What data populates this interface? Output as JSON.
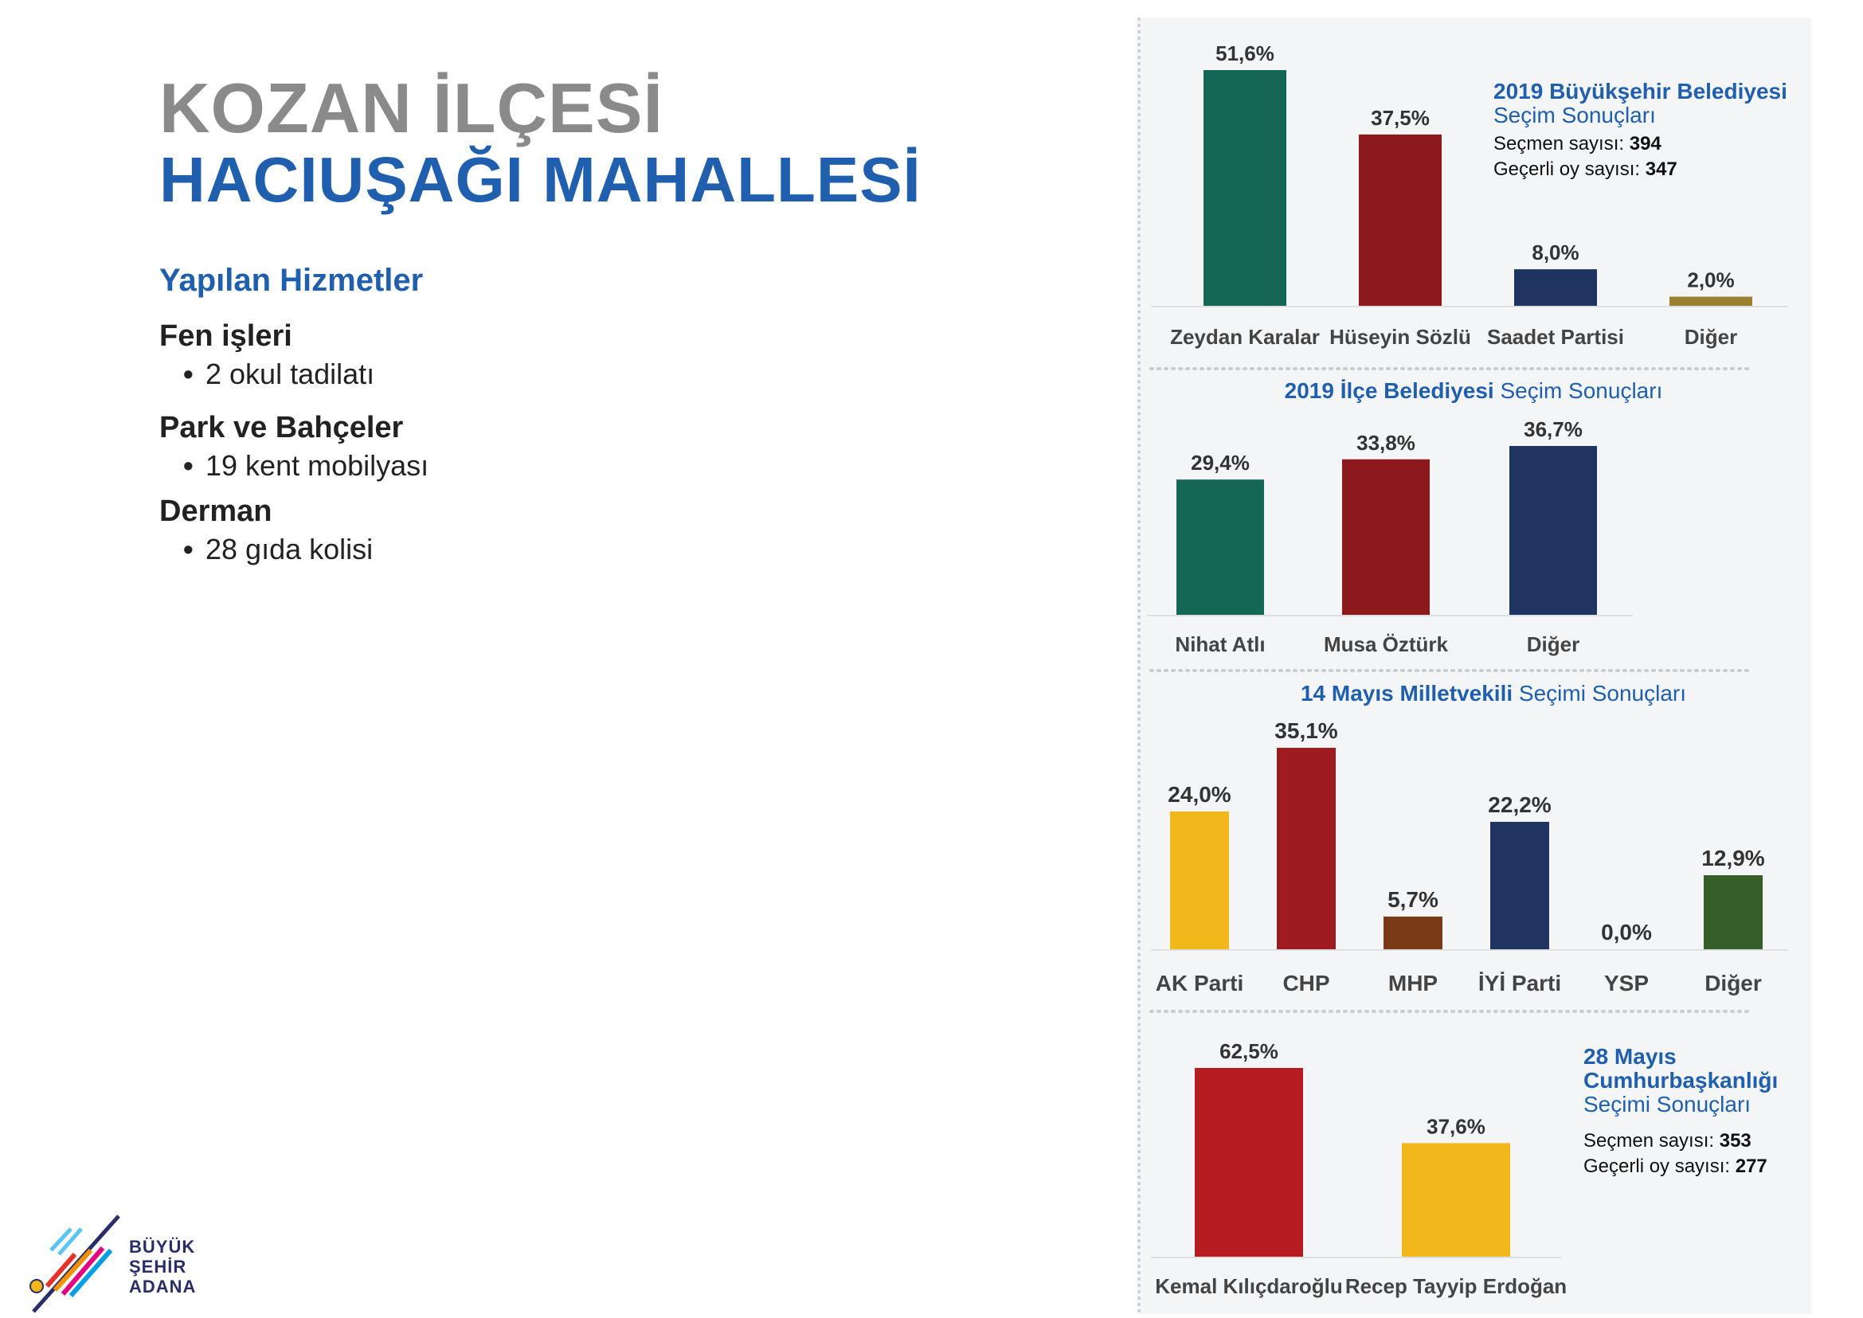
{
  "page": {
    "title_line1": "KOZAN İLÇESİ",
    "title_line2": "HACIUŞAĞI MAHALLESİ",
    "services_heading": "Yapılan Hizmetler",
    "services": [
      {
        "title": "Fen işleri",
        "items": [
          "2 okul tadilatı"
        ]
      },
      {
        "title": "Park ve Bahçeler",
        "items": [
          "19 kent mobilyası"
        ]
      },
      {
        "title": "Derman",
        "items": [
          "28 gıda kolisi"
        ]
      }
    ],
    "logo": {
      "line1": "BÜYÜK",
      "line2": "ŞEHİR",
      "line3": "ADANA"
    }
  },
  "chart_data": [
    {
      "type": "bar",
      "title_bold": "2019 Büyükşehir Belediyesi",
      "title_rest": "Seçim Sonuçları",
      "info": [
        {
          "label": "Seçmen sayısı:",
          "value": "394"
        },
        {
          "label": "Geçerli oy sayısı:",
          "value": "347"
        }
      ],
      "categories": [
        "Zeydan Karalar",
        "Hüseyin Sözlü",
        "Saadet Partisi",
        "Diğer"
      ],
      "values": [
        51.6,
        37.5,
        8.0,
        2.0
      ],
      "value_labels": [
        "51,6%",
        "37,5%",
        "8,0%",
        "2,0%"
      ],
      "colors": [
        "#146655",
        "#8c1a1c",
        "#1f3461",
        "#9a8030"
      ],
      "ylim": [
        0,
        51.6
      ]
    },
    {
      "type": "bar",
      "title_bold": "2019 İlçe Belediyesi",
      "title_rest": "Seçim Sonuçları",
      "categories": [
        "Nihat Atlı",
        "Musa Öztürk",
        "Diğer"
      ],
      "values": [
        29.4,
        33.8,
        36.7
      ],
      "value_labels": [
        "29,4%",
        "33,8%",
        "36,7%"
      ],
      "colors": [
        "#146655",
        "#8c1a1c",
        "#1f3461"
      ],
      "ylim": [
        0,
        36.7
      ]
    },
    {
      "type": "bar",
      "title_bold": "14 Mayıs Milletvekili",
      "title_rest": "Seçimi Sonuçları",
      "categories": [
        "AK Parti",
        "CHP",
        "MHP",
        "İYİ Parti",
        "YSP",
        "Diğer"
      ],
      "values": [
        24.0,
        35.1,
        5.7,
        22.2,
        0.0,
        12.9
      ],
      "value_labels": [
        "24,0%",
        "35,1%",
        "5,7%",
        "22,2%",
        "0,0%",
        "12,9%"
      ],
      "colors": [
        "#f2b71a",
        "#9e1b22",
        "#7a3a17",
        "#1f3461",
        "#999999",
        "#355e2a"
      ],
      "ylim": [
        0,
        35.1
      ]
    },
    {
      "type": "bar",
      "title_lines_bold": [
        "28 Mayıs",
        "Cumhurbaşkanlığı"
      ],
      "title_rest": "Seçimi Sonuçları",
      "info": [
        {
          "label": "Seçmen sayısı:",
          "value": "353"
        },
        {
          "label": "Geçerli oy sayısı:",
          "value": "277"
        }
      ],
      "categories": [
        "Kemal Kılıçdaroğlu",
        "Recep Tayyip Erdoğan"
      ],
      "values": [
        62.5,
        37.6
      ],
      "value_labels": [
        "62,5%",
        "37,6%"
      ],
      "colors": [
        "#b71c22",
        "#f2b71a"
      ],
      "ylim": [
        0,
        62.5
      ]
    }
  ],
  "colors": {
    "accent_blue": "#1f5fad",
    "title_grey": "#8a8a8a",
    "panel_bg": "#f4f5f7"
  }
}
